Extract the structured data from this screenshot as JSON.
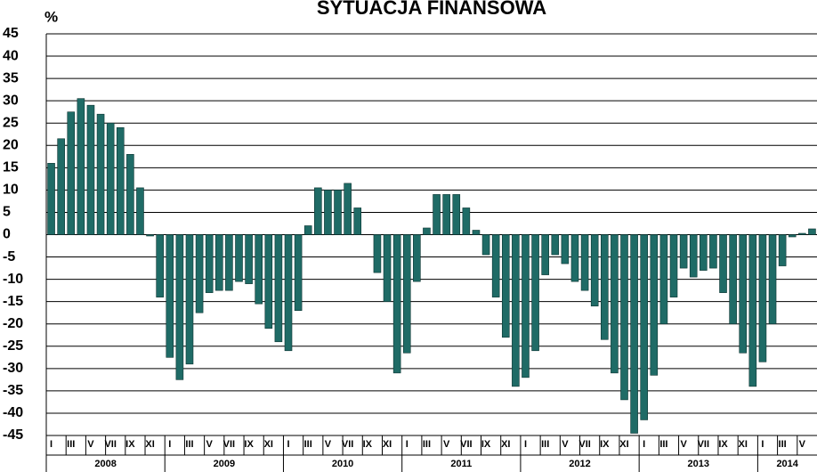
{
  "chart_data": {
    "type": "bar",
    "title": "SYTUACJA FINANSOWA",
    "ylabel": "%",
    "categories": [
      "I",
      null,
      "III",
      null,
      "V",
      null,
      "VII",
      null,
      "IX",
      null,
      "XI",
      null,
      "I",
      null,
      "III",
      null,
      "V",
      null,
      "VII",
      null,
      "IX",
      null,
      "XI",
      null,
      "I",
      null,
      "III",
      null,
      "V",
      null,
      "VII",
      null,
      "IX",
      null,
      "XI",
      null,
      "I",
      null,
      "III",
      null,
      "V",
      null,
      "VII",
      null,
      "IX",
      null,
      "XI",
      null,
      "I",
      null,
      "III",
      null,
      "V",
      null,
      "VII",
      null,
      "IX",
      null,
      "XI",
      null,
      "I",
      null,
      "III",
      null,
      "V",
      null,
      "VII",
      null,
      "IX",
      null,
      "XI",
      null,
      "I",
      null,
      "III",
      null,
      "V",
      null
    ],
    "years": [
      "2008",
      "2009",
      "2010",
      "2011",
      "2012",
      "2013",
      "2014"
    ],
    "values": [
      16,
      21.5,
      27.5,
      30.5,
      29,
      27,
      25,
      24,
      18,
      10.5,
      -0.3,
      -14,
      -27.5,
      -32.5,
      -29,
      -17.5,
      -13,
      -12.5,
      -12.5,
      -10.5,
      -11,
      -15.5,
      -21,
      -24,
      -26,
      -17,
      2,
      10.5,
      10,
      10,
      11.5,
      6,
      0,
      -8.5,
      -15,
      -31,
      -26.5,
      -10.5,
      1.5,
      9,
      9,
      9,
      6,
      1,
      -4.5,
      -14,
      -23,
      -34,
      -32,
      -26,
      -9,
      -4.5,
      -6.5,
      -10.5,
      -12.5,
      -16,
      -23.5,
      -31,
      -37,
      -44.5,
      -41.5,
      -31.5,
      -20,
      -14,
      -7.5,
      -9.5,
      -8,
      -7.5,
      -13,
      -20,
      -26.5,
      -34,
      -28.5,
      -20,
      -7,
      -0.5,
      0.3,
      1.3
    ],
    "color": "#1f6b66",
    "ylim": [
      -45,
      45
    ],
    "yticks": [
      45,
      40,
      35,
      30,
      25,
      20,
      15,
      10,
      5,
      0,
      -5,
      -10,
      -15,
      -20,
      -25,
      -30,
      -35,
      -40,
      -45
    ],
    "grid": true
  }
}
